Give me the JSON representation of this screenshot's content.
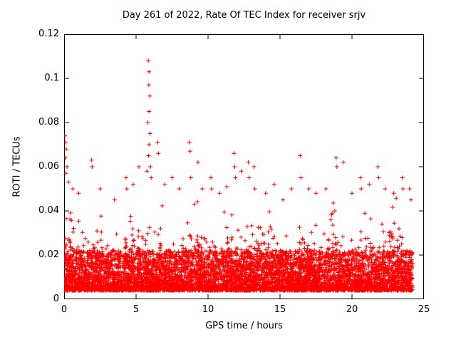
{
  "chart_data": {
    "type": "scatter",
    "title": "Day 261 of 2022, Rate Of TEC Index for receiver srjv",
    "xlabel": "GPS time / hours",
    "ylabel": "ROTI / TECUs",
    "xlim": [
      0,
      25
    ],
    "ylim": [
      0,
      0.12
    ],
    "xticks": [
      0,
      5,
      10,
      15,
      20,
      25
    ],
    "yticks": [
      0,
      0.02,
      0.04,
      0.06,
      0.08,
      0.1,
      0.12
    ],
    "xtick_labels": [
      "0",
      "5",
      "10",
      "15",
      "20",
      "25"
    ],
    "ytick_labels": [
      "0",
      "0.02",
      "0.04",
      "0.06",
      "0.08",
      "0.1",
      "0.12"
    ],
    "grid": false,
    "legend": null,
    "marker": "plus",
    "marker_color": "#ff0000",
    "axis_color": "#000000",
    "series": [
      {
        "name": "ROTI",
        "summary": {
          "n_points_approx": 7000,
          "y_typical_range": [
            0.005,
            0.04
          ],
          "max_value": 0.108,
          "max_at_hour": 5.9,
          "x_data_range": [
            0,
            24.2
          ]
        },
        "band": {
          "x_range": [
            0,
            24.2
          ],
          "y_core": [
            0.004,
            0.022
          ],
          "y_fuzz_max": 0.046,
          "n_points": 6500,
          "seed": 20220261
        },
        "outliers": [
          [
            5.85,
            0.108
          ],
          [
            5.9,
            0.103
          ],
          [
            5.88,
            0.097
          ],
          [
            5.95,
            0.092
          ],
          [
            5.9,
            0.085
          ],
          [
            5.82,
            0.08
          ],
          [
            5.97,
            0.075
          ],
          [
            5.9,
            0.07
          ],
          [
            5.87,
            0.065
          ],
          [
            6.0,
            0.06
          ],
          [
            5.75,
            0.058
          ],
          [
            6.05,
            0.055
          ],
          [
            0.05,
            0.074
          ],
          [
            0.1,
            0.071
          ],
          [
            0.15,
            0.068
          ],
          [
            0.08,
            0.064
          ],
          [
            0.2,
            0.06
          ],
          [
            0.12,
            0.057
          ],
          [
            0.3,
            0.053
          ],
          [
            0.6,
            0.05
          ],
          [
            1.0,
            0.048
          ],
          [
            1.9,
            0.063
          ],
          [
            1.95,
            0.06
          ],
          [
            2.5,
            0.05
          ],
          [
            3.5,
            0.045
          ],
          [
            4.3,
            0.055
          ],
          [
            4.35,
            0.05
          ],
          [
            4.8,
            0.052
          ],
          [
            5.2,
            0.06
          ],
          [
            6.5,
            0.071
          ],
          [
            6.55,
            0.066
          ],
          [
            7.0,
            0.052
          ],
          [
            7.5,
            0.055
          ],
          [
            8.0,
            0.05
          ],
          [
            8.7,
            0.071
          ],
          [
            8.75,
            0.067
          ],
          [
            8.8,
            0.055
          ],
          [
            9.3,
            0.062
          ],
          [
            9.6,
            0.05
          ],
          [
            10.2,
            0.055
          ],
          [
            10.25,
            0.05
          ],
          [
            10.8,
            0.048
          ],
          [
            11.3,
            0.051
          ],
          [
            11.8,
            0.066
          ],
          [
            11.85,
            0.06
          ],
          [
            11.9,
            0.055
          ],
          [
            12.3,
            0.058
          ],
          [
            12.8,
            0.062
          ],
          [
            12.85,
            0.055
          ],
          [
            13.2,
            0.06
          ],
          [
            13.25,
            0.05
          ],
          [
            14.0,
            0.048
          ],
          [
            14.6,
            0.052
          ],
          [
            15.2,
            0.045
          ],
          [
            15.8,
            0.05
          ],
          [
            16.4,
            0.065
          ],
          [
            16.45,
            0.055
          ],
          [
            17.0,
            0.05
          ],
          [
            17.5,
            0.048
          ],
          [
            18.2,
            0.05
          ],
          [
            18.9,
            0.064
          ],
          [
            18.95,
            0.06
          ],
          [
            19.4,
            0.062
          ],
          [
            20.0,
            0.048
          ],
          [
            20.6,
            0.055
          ],
          [
            20.65,
            0.05
          ],
          [
            21.2,
            0.052
          ],
          [
            21.8,
            0.06
          ],
          [
            21.85,
            0.055
          ],
          [
            22.3,
            0.05
          ],
          [
            22.9,
            0.048
          ],
          [
            23.5,
            0.055
          ],
          [
            23.55,
            0.05
          ],
          [
            24.0,
            0.05
          ],
          [
            24.1,
            0.045
          ]
        ]
      }
    ]
  }
}
